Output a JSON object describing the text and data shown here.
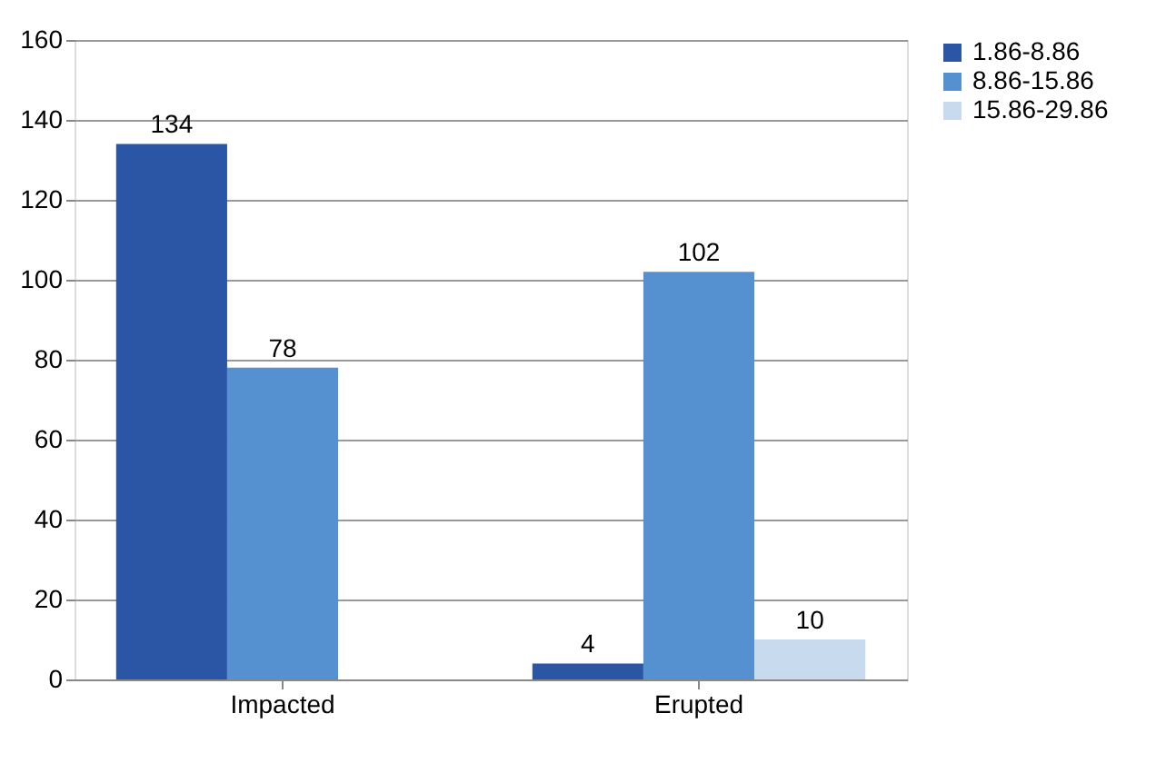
{
  "chart_data": {
    "type": "bar",
    "categories": [
      "Impacted",
      "Erupted"
    ],
    "series": [
      {
        "name": "1.86-8.86",
        "color": "#2b55a5",
        "values": [
          134,
          4
        ]
      },
      {
        "name": "8.86-15.86",
        "color": "#5590d0",
        "values": [
          78,
          102
        ]
      },
      {
        "name": "15.86-29.86",
        "color": "#c8daee",
        "values": [
          null,
          10
        ]
      }
    ],
    "ylim": [
      0,
      160
    ],
    "yticks": [
      0,
      20,
      40,
      60,
      80,
      100,
      120,
      140,
      160
    ],
    "grid": "y",
    "legend": "right",
    "data_labels": true
  }
}
